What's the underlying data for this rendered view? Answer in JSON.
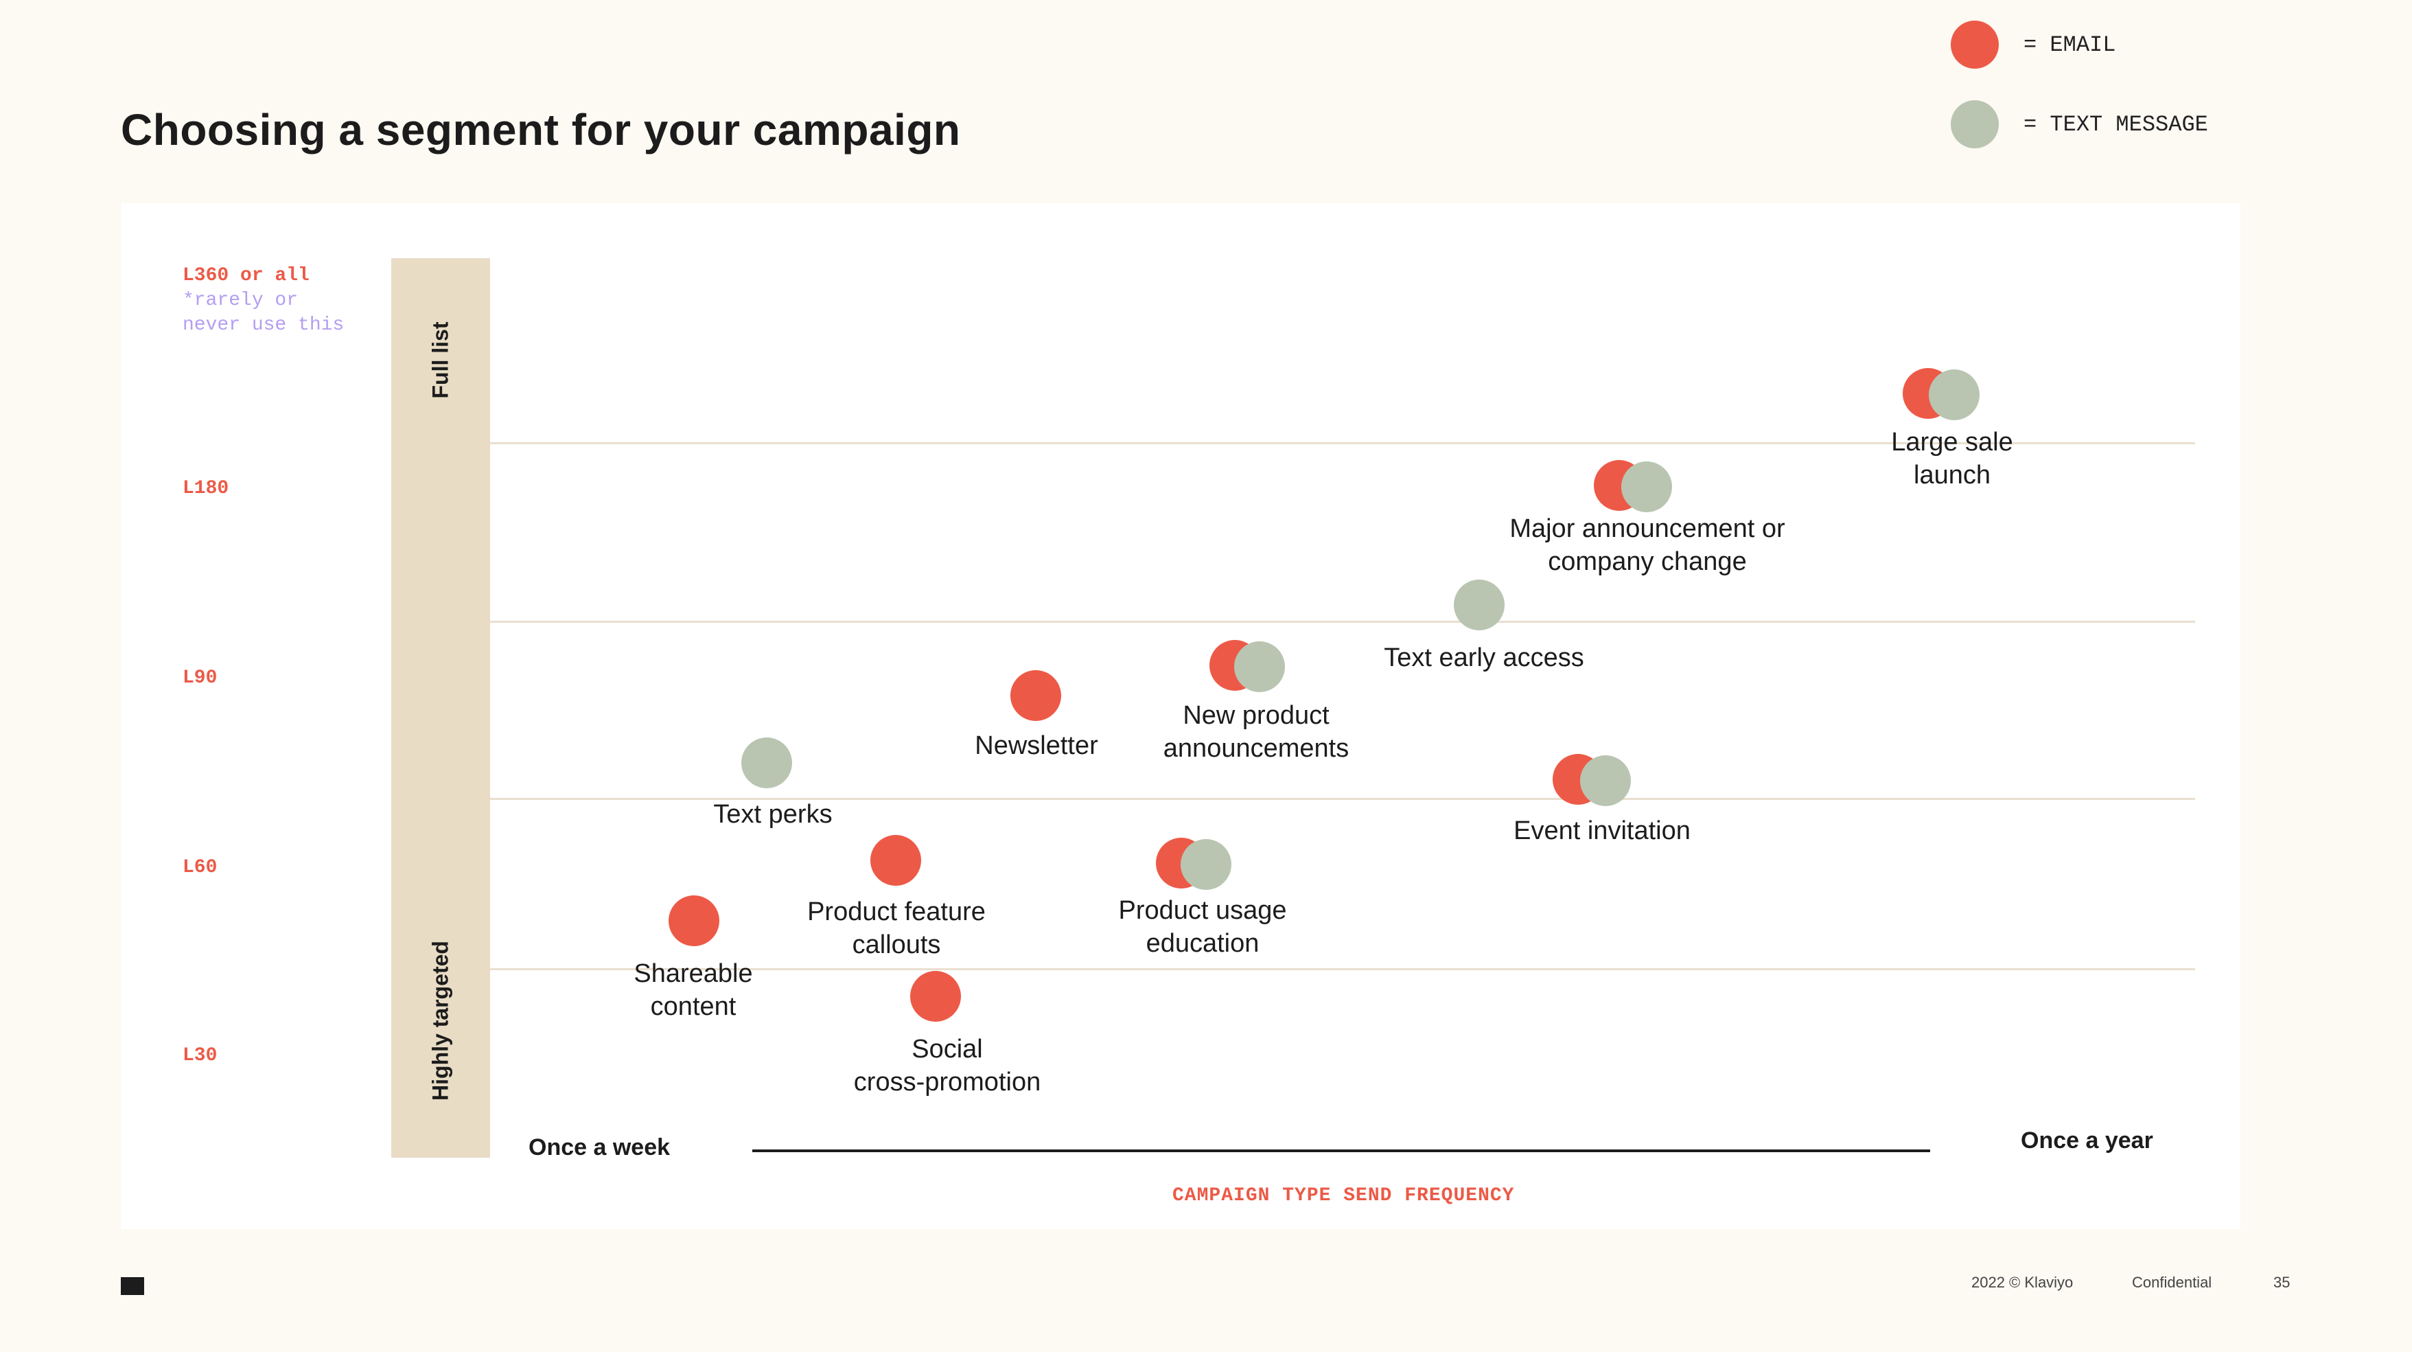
{
  "slide": {
    "title": "Choosing a segment for your campaign"
  },
  "legend": {
    "email_label": "= EMAIL",
    "text_label": "= TEXT MESSAGE",
    "email_color": "#ec5a47",
    "text_color": "#b9c5b1"
  },
  "y_axis": {
    "band_top_label": "Full list",
    "band_bottom_label": "Highly targeted",
    "levels": [
      "L360 or all",
      "L180",
      "L90",
      "L60",
      "L30"
    ],
    "note_line1": "*rarely or",
    "note_line2": "never use this"
  },
  "x_axis": {
    "left_label": "Once a week",
    "right_label": "Once a year",
    "title": "CAMPAIGN TYPE SEND FREQUENCY"
  },
  "campaigns": [
    {
      "label": "Large sale\nlaunch",
      "channels": [
        "email",
        "text"
      ]
    },
    {
      "label": "Major announcement or\ncompany change",
      "channels": [
        "email",
        "text"
      ]
    },
    {
      "label": "Text early access",
      "channels": [
        "text"
      ]
    },
    {
      "label": "New product\nannouncements",
      "channels": [
        "email",
        "text"
      ]
    },
    {
      "label": "Newsletter",
      "channels": [
        "email"
      ]
    },
    {
      "label": "Text perks",
      "channels": [
        "text"
      ]
    },
    {
      "label": "Event invitation",
      "channels": [
        "email",
        "text"
      ]
    },
    {
      "label": "Product feature\ncallouts",
      "channels": [
        "email"
      ]
    },
    {
      "label": "Product usage\neducation",
      "channels": [
        "email",
        "text"
      ]
    },
    {
      "label": "Shareable\ncontent",
      "channels": [
        "email"
      ]
    },
    {
      "label": "Social\ncross-promotion",
      "channels": [
        "email"
      ]
    }
  ],
  "footer": {
    "copyright": "2022 © Klaviyo",
    "confidential": "Confidential",
    "page_number": "35"
  }
}
